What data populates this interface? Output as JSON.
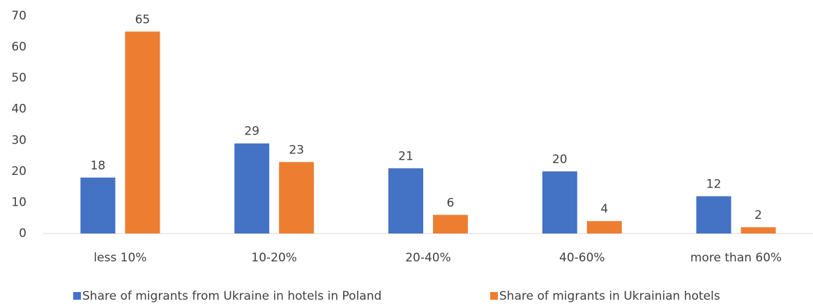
{
  "chart_data": {
    "type": "bar",
    "categories": [
      "less 10%",
      "10-20%",
      "20-40%",
      "40-60%",
      "more than 60%"
    ],
    "series": [
      {
        "name": "Share of migrants from Ukraine in hotels in Poland",
        "color": "#4472c4",
        "values": [
          18,
          29,
          21,
          20,
          12
        ]
      },
      {
        "name": "Share of migrants in Ukrainian hotels",
        "color": "#ed7d31",
        "values": [
          65,
          23,
          6,
          4,
          2
        ]
      }
    ],
    "ylim": [
      0,
      70
    ],
    "yticks": [
      0,
      10,
      20,
      30,
      40,
      50,
      60,
      70
    ],
    "grid": false,
    "legend": "bottom"
  }
}
